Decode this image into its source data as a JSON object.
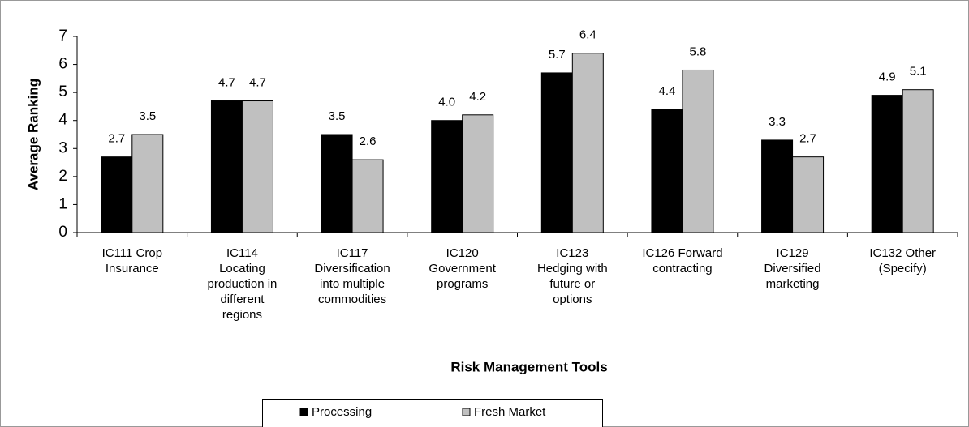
{
  "chart_data": {
    "type": "bar",
    "x_label": "Risk Management Tools",
    "y_label": "Average Ranking",
    "categories": [
      [
        "IC111  Crop",
        "Insurance"
      ],
      [
        "IC114",
        "Locating",
        "production in",
        "different",
        "regions"
      ],
      [
        "IC117",
        "Diversification",
        "into multiple",
        "commodities"
      ],
      [
        "IC120",
        "Government",
        "programs"
      ],
      [
        "IC123",
        "Hedging with",
        "future or",
        "options"
      ],
      [
        "IC126  Forward",
        "contracting"
      ],
      [
        "IC129",
        "Diversified",
        "marketing"
      ],
      [
        "IC132  Other",
        "(Specify)"
      ]
    ],
    "series": [
      {
        "name": "Processing",
        "color": "#000000",
        "values": [
          2.7,
          4.7,
          3.5,
          4.0,
          5.7,
          4.4,
          3.3,
          4.9
        ],
        "value_labels": [
          "2.7",
          "4.7",
          "3.5",
          "4.0",
          "5.7",
          "4.4",
          "3.3",
          "4.9"
        ]
      },
      {
        "name": "Fresh Market",
        "color": "#c0c0c0",
        "values": [
          3.5,
          4.7,
          2.6,
          4.2,
          6.4,
          5.8,
          2.7,
          5.1
        ],
        "value_labels": [
          "3.5",
          "4.7",
          "2.6",
          "4.2",
          "6.4",
          "5.8",
          "2.7",
          "5.1"
        ]
      }
    ],
    "ylim": [
      0,
      7
    ],
    "yticks": [
      0,
      1,
      2,
      3,
      4,
      5,
      6,
      7
    ],
    "grid": false,
    "legend": "bottom"
  }
}
